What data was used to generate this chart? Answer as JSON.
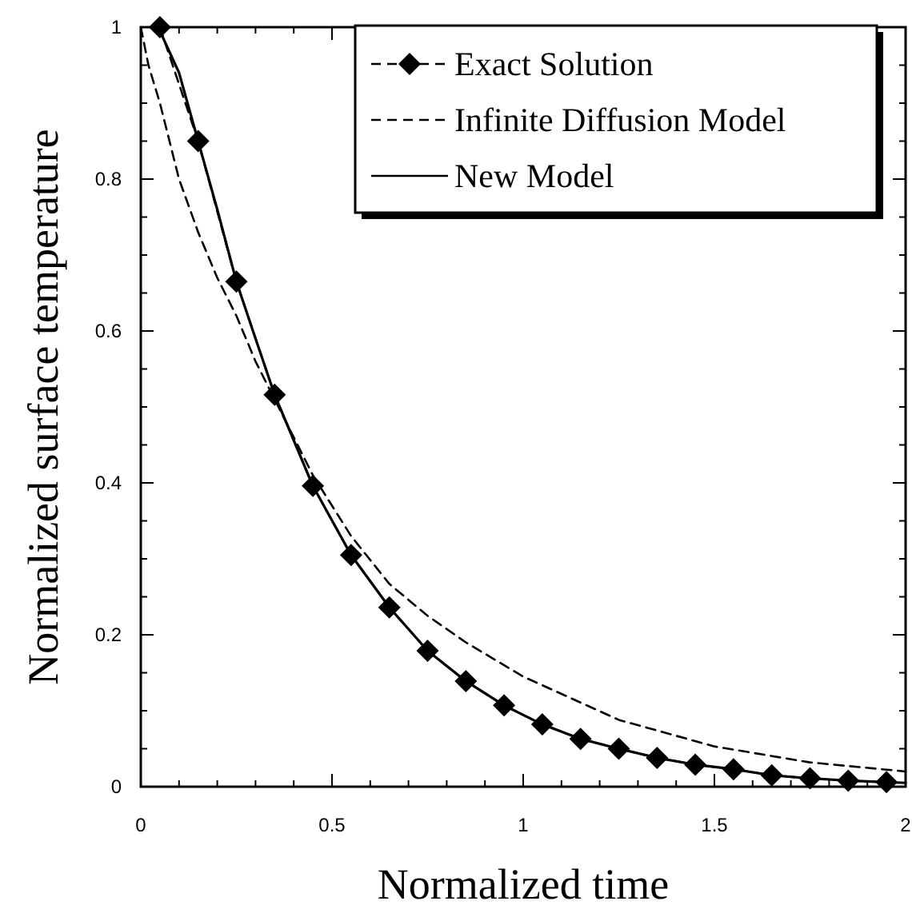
{
  "chart_data": {
    "type": "line",
    "xlabel": "Normalized time",
    "ylabel": "Normalized surface temperature",
    "xlim": [
      0,
      2
    ],
    "ylim": [
      0,
      1
    ],
    "xticks": [
      0,
      {
        "value": 0.1,
        "label": null
      },
      {
        "value": 0.2,
        "label": null
      },
      {
        "value": 0.3,
        "label": null
      },
      {
        "value": 0.4,
        "label": null
      },
      0.5,
      {
        "value": 0.6,
        "label": null
      },
      {
        "value": 0.7,
        "label": null
      },
      {
        "value": 0.8,
        "label": null
      },
      {
        "value": 0.9,
        "label": null
      },
      1,
      {
        "value": 1.1,
        "label": null
      },
      {
        "value": 1.2,
        "label": null
      },
      {
        "value": 1.3,
        "label": null
      },
      {
        "value": 1.4,
        "label": null
      },
      1.5,
      {
        "value": 1.6,
        "label": null
      },
      {
        "value": 1.7,
        "label": null
      },
      {
        "value": 1.8,
        "label": null
      },
      {
        "value": 1.9,
        "label": null
      },
      2
    ],
    "yticks": [
      0,
      {
        "value": 0.05,
        "label": null
      },
      {
        "value": 0.1,
        "label": null
      },
      {
        "value": 0.15,
        "label": null
      },
      0.2,
      {
        "value": 0.25,
        "label": null
      },
      {
        "value": 0.3,
        "label": null
      },
      {
        "value": 0.35,
        "label": null
      },
      0.4,
      {
        "value": 0.45,
        "label": null
      },
      {
        "value": 0.5,
        "label": null
      },
      {
        "value": 0.55,
        "label": null
      },
      0.6,
      {
        "value": 0.65,
        "label": null
      },
      {
        "value": 0.7,
        "label": null
      },
      {
        "value": 0.75,
        "label": null
      },
      0.8,
      {
        "value": 0.85,
        "label": null
      },
      {
        "value": 0.9,
        "label": null
      },
      {
        "value": 0.95,
        "label": null
      },
      1
    ],
    "grid": false,
    "legend": "top right",
    "series": [
      {
        "name": "Exact Solution",
        "color": "#000000",
        "marker": "diamond",
        "line_style": "dashed",
        "x": [
          0.05,
          0.15,
          0.25,
          0.35,
          0.45,
          0.55,
          0.65,
          0.75,
          0.85,
          0.95,
          1.05,
          1.15,
          1.25,
          1.35,
          1.45,
          1.55,
          1.65,
          1.75,
          1.85,
          1.95
        ],
        "values": [
          1.0,
          0.85,
          0.665,
          0.516,
          0.396,
          0.305,
          0.236,
          0.179,
          0.139,
          0.107,
          0.082,
          0.063,
          0.05,
          0.038,
          0.029,
          0.023,
          0.015,
          0.011,
          0.008,
          0.006
        ]
      },
      {
        "name": "Infinite Diffusion Model",
        "color": "#000000",
        "marker": "none",
        "line_style": "dashed",
        "x": [
          0,
          0.02,
          0.05,
          0.1,
          0.15,
          0.2,
          0.25,
          0.3,
          0.35,
          0.45,
          0.55,
          0.65,
          0.75,
          0.85,
          1,
          1.25,
          1.5,
          1.75,
          2
        ],
        "values": [
          1,
          0.95,
          0.9,
          0.8,
          0.73,
          0.67,
          0.62,
          0.56,
          0.51,
          0.41,
          0.33,
          0.267,
          0.225,
          0.19,
          0.145,
          0.088,
          0.053,
          0.032,
          0.02
        ]
      },
      {
        "name": "New Model",
        "color": "#000000",
        "marker": "none",
        "line_style": "solid",
        "x": [
          0.03,
          0.05,
          0.1,
          0.15,
          0.2,
          0.25,
          0.3,
          0.35,
          0.45,
          0.55,
          0.65,
          0.75,
          0.85,
          0.95,
          1.05,
          1.15,
          1.25,
          1.35,
          1.45,
          1.55,
          1.65,
          1.75,
          1.85,
          1.95,
          2
        ],
        "values": [
          1,
          0.995,
          0.94,
          0.85,
          0.76,
          0.665,
          0.59,
          0.516,
          0.396,
          0.305,
          0.236,
          0.179,
          0.139,
          0.107,
          0.082,
          0.063,
          0.05,
          0.038,
          0.029,
          0.023,
          0.015,
          0.011,
          0.008,
          0.006,
          0.005
        ]
      }
    ]
  }
}
